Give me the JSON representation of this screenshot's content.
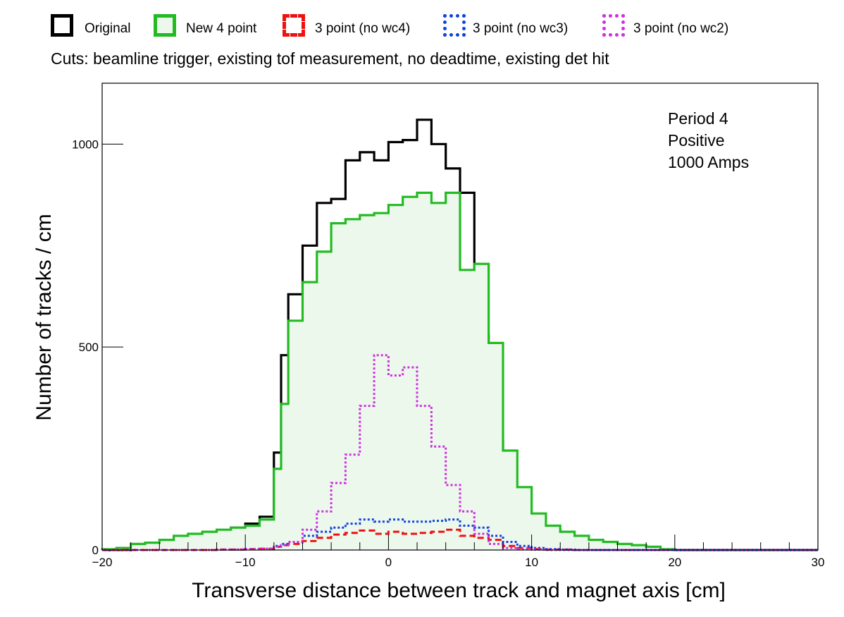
{
  "legend": {
    "items": [
      {
        "label": "Original",
        "color": "#000000",
        "style": "solid",
        "fill": "none"
      },
      {
        "label": "New 4 point",
        "color": "#22bb22",
        "style": "solid",
        "fill": "#edf8ed"
      },
      {
        "label": "3 point (no wc4)",
        "color": "#ee1111",
        "style": "dashed",
        "fill": "none"
      },
      {
        "label": "3 point (no wc3)",
        "color": "#1144dd",
        "style": "dotted",
        "fill": "none"
      },
      {
        "label": "3 point (no wc2)",
        "color": "#cc33dd",
        "style": "dotted",
        "fill": "none"
      }
    ]
  },
  "cuts_text": "Cuts: beamline trigger, existing tof measurement, no deadtime, existing det hit",
  "annotations": {
    "line1": "Period 4",
    "line2": "Positive",
    "line3": "1000 Amps"
  },
  "chart_data": {
    "type": "line",
    "step": true,
    "xlabel": "Transverse distance between track and magnet axis [cm]",
    "ylabel": "Number of tracks / cm",
    "xlim": [
      -20,
      30
    ],
    "ylim": [
      0,
      1150
    ],
    "xticks": [
      -20,
      -10,
      0,
      10,
      20,
      30
    ],
    "xtick_labels": [
      "−20",
      "−10",
      "0",
      "10",
      "20",
      "30"
    ],
    "yticks": [
      0,
      500,
      1000
    ],
    "ytick_labels": [
      "0",
      "500",
      "1000"
    ],
    "grid": false,
    "bin_edges": [
      -20,
      -19,
      -18,
      -17,
      -16,
      -15,
      -14,
      -13,
      -12,
      -11,
      -10,
      -9,
      -8,
      -7.5,
      -7,
      -6,
      -5,
      -4,
      -3,
      -2,
      -1,
      0,
      1,
      2,
      3,
      4,
      5,
      6,
      7,
      8,
      9,
      10,
      11,
      12,
      13,
      14,
      15,
      16,
      17,
      18,
      19,
      20,
      21,
      22,
      23,
      24,
      25,
      26,
      27,
      28,
      29,
      30
    ],
    "series": [
      {
        "name": "Original",
        "color": "#000000",
        "dash": "none",
        "width": 3.2,
        "values": [
          0,
          0,
          3,
          5,
          10,
          20,
          30,
          42,
          48,
          55,
          65,
          82,
          240,
          480,
          630,
          750,
          855,
          865,
          960,
          980,
          960,
          1005,
          1010,
          1060,
          1000,
          940,
          880,
          530,
          270,
          125,
          55,
          65,
          50,
          30,
          18,
          10,
          5,
          3,
          2,
          1,
          1,
          0,
          0,
          0,
          0,
          0,
          0,
          0,
          0,
          0,
          0
        ]
      },
      {
        "name": "New 4 point",
        "color": "#22bb22",
        "dash": "none",
        "width": 3.2,
        "fill": "#edf8ed",
        "values": [
          2,
          5,
          15,
          18,
          25,
          35,
          40,
          45,
          50,
          55,
          60,
          75,
          200,
          360,
          565,
          660,
          735,
          805,
          815,
          825,
          830,
          850,
          870,
          880,
          855,
          880,
          690,
          705,
          510,
          245,
          155,
          90,
          60,
          45,
          35,
          25,
          20,
          15,
          12,
          8,
          2,
          0,
          0,
          0,
          0,
          0,
          0,
          0,
          0,
          0,
          0
        ]
      },
      {
        "name": "3 point (no wc4)",
        "color": "#ee1111",
        "dash": "9,5",
        "width": 3,
        "values": [
          0,
          0,
          0,
          0,
          0,
          0,
          0,
          0,
          1,
          1,
          2,
          3,
          8,
          12,
          15,
          22,
          30,
          38,
          42,
          48,
          40,
          45,
          40,
          42,
          45,
          50,
          35,
          30,
          25,
          10,
          5,
          2,
          1,
          1,
          0,
          0,
          0,
          0,
          0,
          0,
          0,
          0,
          0,
          0,
          0,
          0,
          0,
          0,
          0,
          0,
          0
        ]
      },
      {
        "name": "3 point (no wc3)",
        "color": "#1144dd",
        "dash": "3,3",
        "width": 3,
        "values": [
          0,
          0,
          0,
          0,
          0,
          0,
          0,
          0,
          1,
          1,
          2,
          3,
          10,
          15,
          20,
          35,
          45,
          55,
          65,
          75,
          70,
          75,
          70,
          70,
          72,
          75,
          60,
          55,
          35,
          20,
          10,
          5,
          2,
          1,
          0,
          0,
          0,
          0,
          0,
          0,
          0,
          0,
          0,
          0,
          0,
          0,
          0,
          0,
          0,
          0,
          0
        ]
      },
      {
        "name": "3 point (no wc2)",
        "color": "#cc33dd",
        "dash": "3,3",
        "width": 3,
        "values": [
          0,
          0,
          0,
          0,
          0,
          0,
          0,
          0,
          1,
          1,
          2,
          3,
          8,
          12,
          20,
          50,
          95,
          165,
          235,
          355,
          480,
          430,
          450,
          355,
          255,
          160,
          95,
          40,
          15,
          5,
          2,
          1,
          0,
          0,
          0,
          0,
          0,
          0,
          0,
          0,
          0,
          0,
          0,
          0,
          0,
          0,
          0,
          0,
          0,
          0,
          0
        ]
      }
    ]
  }
}
